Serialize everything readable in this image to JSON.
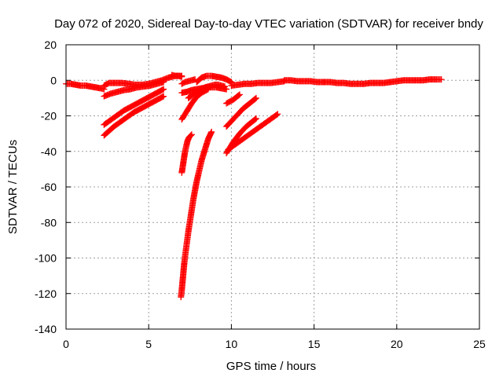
{
  "chart_data": {
    "type": "scatter",
    "title": "Day 072 of 2020, Sidereal Day-to-day VTEC variation (SDTVAR) for receiver bndy",
    "xlabel": "GPS time / hours",
    "ylabel": "SDTVAR / TECUs",
    "xlim": [
      0,
      25
    ],
    "ylim": [
      -140,
      20
    ],
    "xticks": [
      0,
      5,
      10,
      15,
      20,
      25
    ],
    "yticks": [
      -140,
      -120,
      -100,
      -80,
      -60,
      -40,
      -20,
      0,
      20
    ],
    "grid": true,
    "marker": "+",
    "color": "#ff0000",
    "series": [
      {
        "x": [
          0.0,
          0.3,
          0.6,
          0.9,
          1.2,
          1.5,
          1.8,
          2.1,
          2.3
        ],
        "y": [
          -2,
          -2,
          -2.5,
          -3,
          -3,
          -3.5,
          -4,
          -4.5,
          -5
        ]
      },
      {
        "x": [
          2.3,
          2.6,
          3.0,
          3.4,
          3.8,
          4.2,
          4.6,
          5.0,
          5.4,
          5.8,
          6.2,
          6.6,
          7.0
        ],
        "y": [
          -3,
          -1.5,
          -1.5,
          -1.5,
          -2,
          -2.5,
          -2.5,
          -2,
          -1,
          0,
          1.5,
          2.5,
          2.5
        ]
      },
      {
        "x": [
          2.3,
          2.7,
          3.1,
          3.5,
          3.9,
          4.3,
          4.7,
          5.1,
          5.5,
          5.9
        ],
        "y": [
          -9,
          -7.5,
          -6.5,
          -5.5,
          -5,
          -4,
          -3.5,
          -3,
          -2,
          -1
        ]
      },
      {
        "x": [
          2.3,
          2.6,
          2.9,
          3.2,
          3.5,
          3.8,
          4.1,
          4.4,
          4.7,
          5.0,
          5.3,
          5.6,
          5.9
        ],
        "y": [
          -25,
          -23,
          -21,
          -19,
          -17,
          -15.5,
          -14,
          -12.5,
          -11,
          -9.5,
          -8,
          -6.5,
          -5
        ]
      },
      {
        "x": [
          2.3,
          2.6,
          2.9,
          3.2,
          3.5,
          3.8,
          4.1,
          4.4,
          4.7,
          5.0,
          5.3,
          5.6,
          5.9
        ],
        "y": [
          -31,
          -28.5,
          -26,
          -24,
          -22,
          -20,
          -18,
          -16.5,
          -15,
          -13.5,
          -12,
          -10.5,
          -9
        ]
      },
      {
        "x": [
          6.4,
          6.6,
          6.8,
          7.0
        ],
        "y": [
          3,
          2.5,
          2.5,
          2
        ]
      },
      {
        "x": [
          7.0,
          7.2,
          7.4,
          7.6,
          7.8,
          8.0,
          8.2,
          8.4,
          8.6
        ],
        "y": [
          -22,
          -19,
          -16,
          -13,
          -10.5,
          -8.5,
          -7,
          -6,
          -5
        ]
      },
      {
        "x": [
          7.0,
          7.3,
          7.6,
          7.9,
          8.2,
          8.5,
          8.8,
          9.1,
          9.4,
          9.7
        ],
        "y": [
          -7,
          -6.5,
          -5.5,
          -5,
          -4.5,
          -4,
          -4,
          -4,
          -4.5,
          -5
        ]
      },
      {
        "x": [
          7.0,
          7.2,
          7.4,
          7.6,
          7.8
        ],
        "y": [
          -2,
          -1,
          -0.5,
          0,
          0.5
        ]
      },
      {
        "x": [
          7.9,
          8.2,
          8.5,
          8.8,
          9.1,
          9.4,
          9.7,
          10.0
        ],
        "y": [
          -1,
          1.5,
          2.5,
          2.5,
          2,
          1.5,
          0.5,
          -1
        ]
      },
      {
        "x": [
          7.4,
          7.6,
          7.8,
          8.0,
          8.2,
          8.4,
          8.6,
          8.8,
          9.0,
          9.2,
          9.4,
          9.6
        ],
        "y": [
          -10,
          -8.5,
          -7,
          -6,
          -5,
          -4,
          -3.5,
          -3,
          -2.5,
          -2.5,
          -3,
          -3.5
        ]
      },
      {
        "x": [
          7.0,
          7.05,
          7.1,
          7.15,
          7.2,
          7.25,
          7.3,
          7.35,
          7.4,
          7.45,
          7.5,
          7.55,
          7.6
        ],
        "y": [
          -52,
          -49,
          -46,
          -43,
          -40,
          -38,
          -36,
          -34,
          -33,
          -32,
          -31.5,
          -31,
          -30.5
        ]
      },
      {
        "x": [
          6.95,
          7.0,
          7.05,
          7.1,
          7.15,
          7.2,
          7.3,
          7.4,
          7.5,
          7.6,
          7.7,
          7.8,
          7.9,
          8.0,
          8.1,
          8.2,
          8.3,
          8.4,
          8.5,
          8.6,
          8.7,
          8.8
        ],
        "y": [
          -122,
          -118,
          -113,
          -108,
          -103,
          -99,
          -92,
          -85,
          -79,
          -73,
          -67,
          -62,
          -57,
          -53,
          -49,
          -45,
          -42,
          -39,
          -36,
          -33,
          -31,
          -29
        ]
      },
      {
        "x": [
          9.7,
          9.9,
          10.1,
          10.3,
          10.5
        ],
        "y": [
          -13,
          -12,
          -11,
          -9.5,
          -8
        ]
      },
      {
        "x": [
          9.7,
          9.9,
          10.1,
          10.3,
          10.5,
          10.7,
          10.9,
          11.1,
          11.3,
          11.5
        ],
        "y": [
          -26,
          -24,
          -22,
          -20,
          -18,
          -16,
          -14.5,
          -13,
          -11.5,
          -10
        ]
      },
      {
        "x": [
          9.7,
          9.9,
          10.1,
          10.3,
          10.5,
          10.7,
          10.9,
          11.1,
          11.3,
          11.5
        ],
        "y": [
          -41,
          -38,
          -35,
          -32.5,
          -30,
          -28,
          -26,
          -24.5,
          -23,
          -21.5
        ]
      },
      {
        "x": [
          9.8,
          10.1,
          10.4,
          10.7,
          11.0,
          11.3,
          11.6,
          11.9,
          12.2,
          12.5,
          12.8
        ],
        "y": [
          -39,
          -37,
          -35,
          -33,
          -31,
          -29,
          -27,
          -25,
          -23,
          -21,
          -19
        ]
      },
      {
        "x": [
          10.0,
          10.4,
          10.8,
          11.2,
          11.6,
          12.0,
          12.4,
          12.8,
          13.2
        ],
        "y": [
          -3,
          -2.5,
          -2,
          -2,
          -1.5,
          -1.5,
          -1.5,
          -1,
          -0.5
        ]
      },
      {
        "x": [
          13.2,
          13.6,
          14.0,
          14.4,
          14.8,
          15.2,
          15.6
        ],
        "y": [
          0,
          0,
          -0.5,
          -0.5,
          -0.5,
          -1,
          -1
        ]
      },
      {
        "x": [
          15.6,
          16.0,
          16.4,
          16.8,
          17.2,
          17.6,
          18.0,
          18.4,
          18.8,
          19.2,
          19.6
        ],
        "y": [
          -1,
          -1,
          -1.5,
          -1.5,
          -2,
          -2,
          -2,
          -1.5,
          -1.5,
          -1.5,
          -1
        ]
      },
      {
        "x": [
          19.6,
          20.0,
          20.4,
          20.8,
          21.2,
          21.6,
          22.0,
          22.4,
          22.7
        ],
        "y": [
          -1,
          -0.5,
          0,
          0,
          0,
          0,
          0.5,
          0.5,
          0.5
        ]
      }
    ]
  }
}
